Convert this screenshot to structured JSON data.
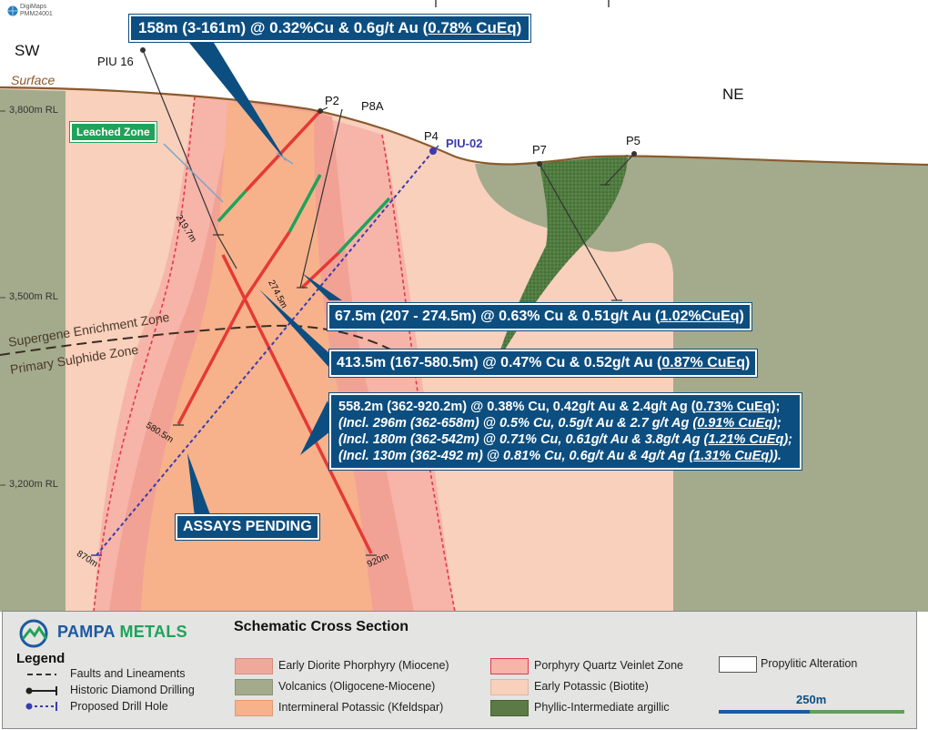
{
  "logo_corner": {
    "line1": "DigiMaps",
    "line2": "PMM24001"
  },
  "directions": {
    "left": "SW",
    "right": "NE"
  },
  "surface_label": "Surface",
  "rl_labels": [
    "3,800m RL",
    "3,500m RL",
    "3,200m RL"
  ],
  "holes": {
    "piu16": "PIU 16",
    "p2": "P2",
    "p8a": "P8A",
    "p4": "P4",
    "piu02": "PIU-02",
    "p7": "P7",
    "p5": "P5"
  },
  "depths": {
    "d219": "219.7m",
    "d274": "274.5m",
    "d580": "580.5m",
    "d870": "870m",
    "d920": "920m"
  },
  "zones": {
    "supergene": "Supergene Enrichment Zone",
    "primary": "Primary Sulphide Zone"
  },
  "leached_zone": "Leached Zone",
  "callouts": {
    "c1": {
      "text": "158m (3-161m) @ 0.32%Cu & 0.6g/t Au (",
      "eq": "0.78% CuEq",
      "tail": ")"
    },
    "c2": {
      "text": "67.5m (207 - 274.5m) @ 0.63% Cu & 0.51g/t Au (",
      "eq": "1.02%CuEq",
      "tail": ")"
    },
    "c3": {
      "text": "413.5m (167-580.5m) @ 0.47% Cu & 0.52g/t Au (",
      "eq": "0.87% CuEq",
      "tail": ")"
    },
    "c4": {
      "l1": "558.2m (362-920.2m) @ 0.38% Cu, 0.42g/t Au & 2.4g/t Ag (",
      "l1eq": "0.73% CuEq",
      "l1tail": ");",
      "l2": "(Incl. 296m (362-658m) @ 0.5% Cu, 0.5g/t Au & 2.7 g/t Ag (",
      "l2eq": "0.91% CuEq",
      "l2tail": ");",
      "l3": "(Incl. 180m (362-542m) @ 0.71% Cu, 0.61g/t Au & 3.8g/t Ag (",
      "l3eq": "1.21% CuEq",
      "l3tail": ");",
      "l4": "(Incl. 130m (362-492 m) @ 0.81% Cu, 0.6g/t Au & 4g/t Ag (",
      "l4eq": "1.31% CuEq",
      "l4tail": "))."
    },
    "pending": "ASSAYS PENDING"
  },
  "legend": {
    "brand_a": "PAMPA",
    "brand_b": " METALS",
    "title": "Legend",
    "section_title": "Schematic Cross Section",
    "lines": [
      "Faults and Lineaments",
      "Historic Diamond Drilling",
      "Proposed Drill Hole"
    ],
    "units": [
      {
        "label": "Early Diorite Phorphyry (Miocene)",
        "color": "#f0a89a"
      },
      {
        "label": "Volcanics (Oligocene-Miocene)",
        "color": "#a3ab8c"
      },
      {
        "label": "Intermineral Potassic (Kfeldspar)",
        "color": "#f7b28c"
      },
      {
        "label": "Porphyry Quartz Veinlet Zone",
        "color": "#f7b4a8"
      },
      {
        "label": "Early Potassic (Biotite)",
        "color": "#f8d0bc"
      },
      {
        "label": "Phyllic-Intermediate argillic",
        "color": "#5b7a45"
      },
      {
        "label": "Propylitic Alteration",
        "color": "#ffffff"
      }
    ],
    "scale": "250m"
  },
  "colors": {
    "callout": "#0d4e80",
    "hit": "#e53935",
    "leached": "#1fa35a",
    "proposed": "#3b3bb0"
  }
}
